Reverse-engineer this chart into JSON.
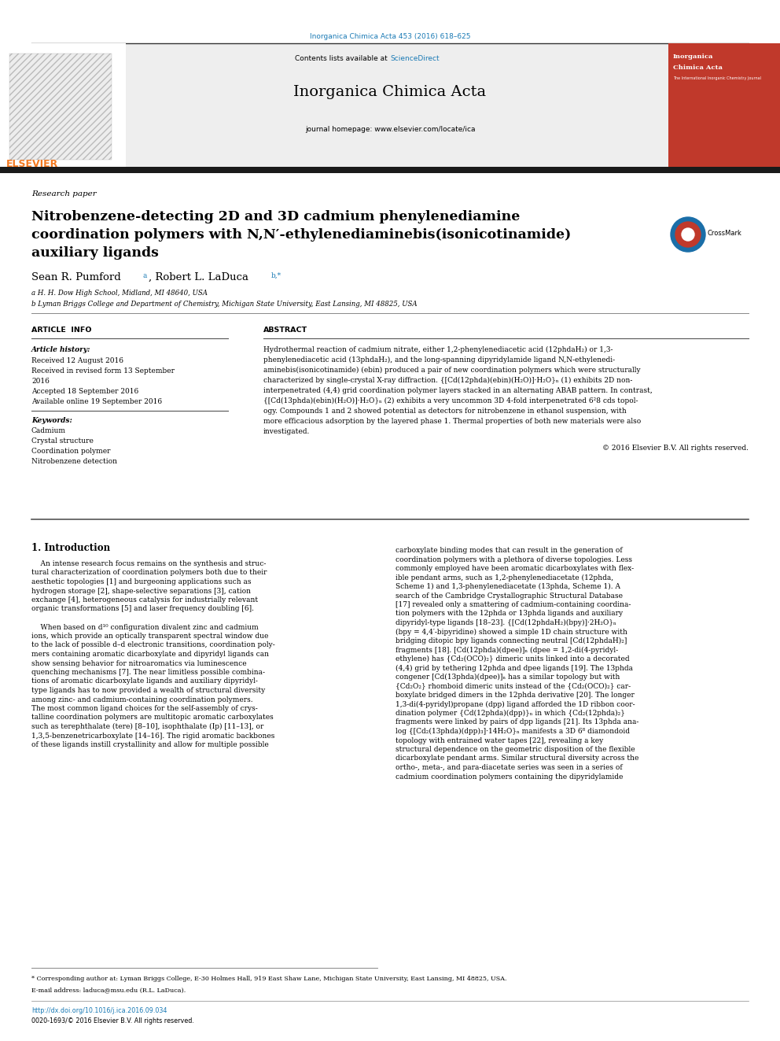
{
  "page_width": 9.92,
  "page_height": 13.23,
  "bg_color": "#ffffff",
  "header_journal_cite": "Inorganica Chimica Acta 453 (2016) 618–625",
  "header_cite_color": "#1a7ab5",
  "journal_name": "Inorganica Chimica Acta",
  "journal_homepage": "journal homepage: www.elsevier.com/locate/ica",
  "contents_text": "Contents lists available at ",
  "science_direct": "ScienceDirect",
  "science_direct_color": "#1a7ab5",
  "section_label": "Research paper",
  "title_line1": "Nitrobenzene-detecting 2D and 3D cadmium phenylenediamine",
  "title_line2": "coordination polymers with N,N′-ethylenediaminebis(isonicotinamide)",
  "title_line3": "auxiliary ligands",
  "author_line": "Sean R. Pumford ",
  "author_a": "a",
  "author_mid": ", Robert L. LaDuca ",
  "author_b": "b,*",
  "affil_a": "a H. H. Dow High School, Midland, MI 48640, USA",
  "affil_b": "b Lyman Briggs College and Department of Chemistry, Michigan State University, East Lansing, MI 48825, USA",
  "article_info_header": "ARTICLE  INFO",
  "abstract_header": "ABSTRACT",
  "article_history_label": "Article history:",
  "received1": "Received 12 August 2016",
  "received2": "Received in revised form 13 September",
  "received2b": "2016",
  "accepted": "Accepted 18 September 2016",
  "available": "Available online 19 September 2016",
  "keywords_label": "Keywords:",
  "kw1": "Cadmium",
  "kw2": "Crystal structure",
  "kw3": "Coordination polymer",
  "kw4": "Nitrobenzene detection",
  "abstract_lines": [
    "Hydrothermal reaction of cadmium nitrate, either 1,2-phenylenediacetic acid (12phdaH₂) or 1,3-",
    "phenylenediacetic acid (13phdaH₂), and the long-spanning dipyridylamide ligand N,N-ethylenedi-",
    "aminebis(isonicotinamide) (ebin) produced a pair of new coordination polymers which were structurally",
    "characterized by single-crystal X-ray diffraction. {[Cd(12phda)(ebin)(H₂O)]·H₂O}ₙ (1) exhibits 2D non-",
    "interpenetrated (4,4) grid coordination polymer layers stacked in an alternating ABAB pattern. In contrast,",
    "{[Cd(13phda)(ebin)(H₂O)]·H₂O}ₙ (2) exhibits a very uncommon 3D 4-fold interpenetrated 6²8 cds topol-",
    "ogy. Compounds 1 and 2 showed potential as detectors for nitrobenzene in ethanol suspension, with",
    "more efficacious adsorption by the layered phase 1. Thermal properties of both new materials were also",
    "investigated."
  ],
  "copyright": "© 2016 Elsevier B.V. All rights reserved.",
  "intro_header": "1. Introduction",
  "left_intro_lines": [
    "    An intense research focus remains on the synthesis and struc-",
    "tural characterization of coordination polymers both due to their",
    "aesthetic topologies [1] and burgeoning applications such as",
    "hydrogen storage [2], shape-selective separations [3], cation",
    "exchange [4], heterogeneous catalysis for industrially relevant",
    "organic transformations [5] and laser frequency doubling [6].",
    "",
    "    When based on d¹⁰ configuration divalent zinc and cadmium",
    "ions, which provide an optically transparent spectral window due",
    "to the lack of possible d–d electronic transitions, coordination poly-",
    "mers containing aromatic dicarboxylate and dipyridyl ligands can",
    "show sensing behavior for nitroaromatics via luminescence",
    "quenching mechanisms [7]. The near limitless possible combina-",
    "tions of aromatic dicarboxylate ligands and auxiliary dipyridyl-",
    "type ligands has to now provided a wealth of structural diversity",
    "among zinc- and cadmium-containing coordination polymers.",
    "The most common ligand choices for the self-assembly of crys-",
    "talline coordination polymers are multitopic aromatic carboxylates",
    "such as terephthalate (tere) [8–10], isophthalate (Ip) [11–13], or",
    "1,3,5-benzenetricarboxylate [14–16]. The rigid aromatic backbones",
    "of these ligands instill crystallinity and allow for multiple possible"
  ],
  "right_intro_lines": [
    "carboxylate binding modes that can result in the generation of",
    "coordination polymers with a plethora of diverse topologies. Less",
    "commonly employed have been aromatic dicarboxylates with flex-",
    "ible pendant arms, such as 1,2-phenylenediacetate (12phda,",
    "Scheme 1) and 1,3-phenylenediacetate (13phda, Scheme 1). A",
    "search of the Cambridge Crystallographic Structural Database",
    "[17] revealed only a smattering of cadmium-containing coordina-",
    "tion polymers with the 12phda or 13phda ligands and auxiliary",
    "dipyridyl-type ligands [18–23]. {[Cd(12phdaH₂)(bpy)]·2H₂O}ₙ",
    "(bpy = 4,4′-bipyridine) showed a simple 1D chain structure with",
    "bridging ditopic bpy ligands connecting neutral [Cd(12phdaH)₂]",
    "fragments [18]. [Cd(12phda)(dpee)]ₙ (dpee = 1,2-di(4-pyridyl-",
    "ethylene) has {Cd₂(OCO)₂} dimeric units linked into a decorated",
    "(4,4) grid by tethering 12phda and dpee ligands [19]. The 13phda",
    "congener [Cd(13phda)(dpee)]ₙ has a similar topology but with",
    "{Cd₂O₂} rhomboid dimeric units instead of the {Cd₂(OCO)₂} car-",
    "boxylate bridged dimers in the 12phda derivative [20]. The longer",
    "1,3-di(4-pyridyl)propane (dpp) ligand afforded the 1D ribbon coor-",
    "dination polymer {Cd(12phda)(dpp)}ₙ in which {Cd₂(12phda)₂}",
    "fragments were linked by pairs of dpp ligands [21]. Its 13phda ana-",
    "log {[Cd₂(13phda)(dpp)₃]·14H₂O}ₙ manifests a 3D 6⁸ diamondoid",
    "topology with entrained water tapes [22], revealing a key",
    "structural dependence on the geometric disposition of the flexible",
    "dicarboxylate pendant arms. Similar structural diversity across the",
    "ortho-, meta-, and para-diacetate series was seen in a series of",
    "cadmium coordination polymers containing the dipyridylamide"
  ],
  "footnote_star": "* Corresponding author at: Lyman Briggs College, E-30 Holmes Hall, 919 East Shaw Lane, Michigan State University, East Lansing, MI 48825, USA.",
  "footnote_email": "E-mail address: laduca@msu.edu (R.L. LaDuca).",
  "doi_text": "http://dx.doi.org/10.1016/j.ica.2016.09.034",
  "issn_text": "0020-1693/© 2016 Elsevier B.V. All rights reserved.",
  "header_bar_color": "#1a1a1a",
  "elsevier_color": "#f47920",
  "link_color": "#1a7ab5",
  "header_bg_color": "#eeeeee",
  "cover_bg_color": "#c0392b"
}
